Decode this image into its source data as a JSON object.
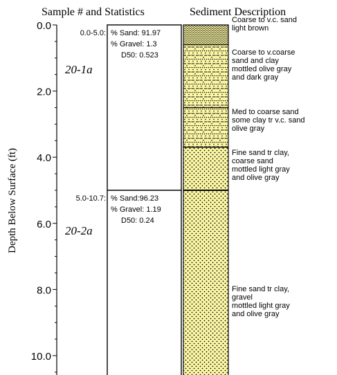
{
  "headers": {
    "sample_stats": "Sample # and Statistics",
    "sediment": "Sediment Description"
  },
  "y_axis": {
    "label": "Depth Below Surface (ft)",
    "ticks": [
      "0.0",
      "2.0",
      "4.0",
      "6.0",
      "8.0",
      "10.0"
    ]
  },
  "samples": [
    {
      "id": "20-1a",
      "interval": "0.0-5.0:",
      "stats": [
        "% Sand: 91.97",
        "% Gravel: 1.3",
        "D50: 0.523"
      ]
    },
    {
      "id": "20-2a",
      "interval": "5.0-10.7:",
      "stats": [
        "% Sand:96.23",
        "% Gravel: 1.19",
        "D50: 0.24"
      ]
    }
  ],
  "sediment_units": [
    {
      "top": 0.0,
      "bottom": 0.6,
      "pattern": "coarse-sand",
      "lines": [
        "Coarse to v.c. sand",
        "light brown"
      ]
    },
    {
      "top": 0.6,
      "bottom": 2.5,
      "pattern": "sand-clay",
      "lines": [
        "Coarse to v.coarse",
        "sand and clay",
        "mottled olive gray",
        "and dark gray"
      ]
    },
    {
      "top": 2.5,
      "bottom": 3.7,
      "pattern": "sand-clay",
      "lines": [
        "Med to coarse sand",
        "some clay tr v.c. sand",
        "olive gray"
      ]
    },
    {
      "top": 3.7,
      "bottom": 5.0,
      "pattern": "fine-sand",
      "lines": [
        "Fine sand tr clay,",
        "coarse sand",
        "mottled light gray",
        "and olive gray"
      ]
    },
    {
      "top": 5.0,
      "bottom": 10.7,
      "pattern": "fine-sand",
      "lines": [
        "Fine sand tr clay,",
        "gravel",
        "mottled light gray",
        "and olive gray"
      ]
    }
  ],
  "colors": {
    "sand_fill": "#fdf8a6",
    "dot": "#000000",
    "line": "#000000"
  }
}
